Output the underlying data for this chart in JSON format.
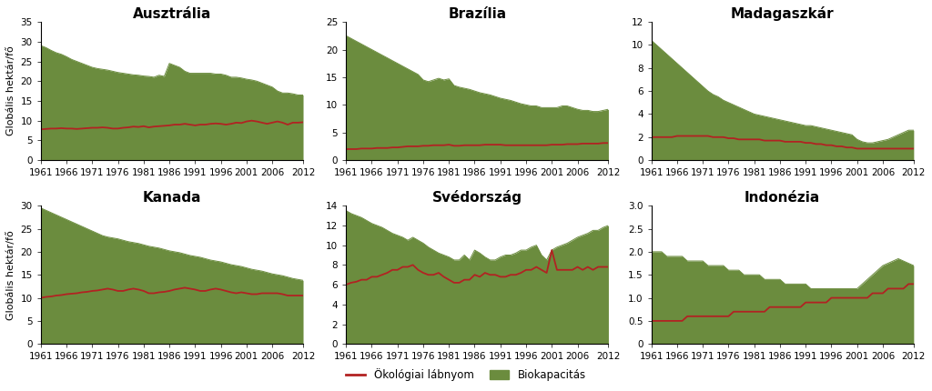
{
  "titles": [
    "Ausztrália",
    "Brazília",
    "Madagaszkár",
    "Kanada",
    "Svédország",
    "Indonézia"
  ],
  "years": [
    1961,
    1962,
    1963,
    1964,
    1965,
    1966,
    1967,
    1968,
    1969,
    1970,
    1971,
    1972,
    1973,
    1974,
    1975,
    1976,
    1977,
    1978,
    1979,
    1980,
    1981,
    1982,
    1983,
    1984,
    1985,
    1986,
    1987,
    1988,
    1989,
    1990,
    1991,
    1992,
    1993,
    1994,
    1995,
    1996,
    1997,
    1998,
    1999,
    2000,
    2001,
    2002,
    2003,
    2004,
    2005,
    2006,
    2007,
    2008,
    2009,
    2010,
    2011,
    2012
  ],
  "biocap": {
    "Ausztrália": [
      29.0,
      28.5,
      27.8,
      27.2,
      26.8,
      26.2,
      25.5,
      25.0,
      24.5,
      24.0,
      23.5,
      23.2,
      23.0,
      22.8,
      22.5,
      22.2,
      22.0,
      21.8,
      21.6,
      21.5,
      21.3,
      21.2,
      21.0,
      21.5,
      21.2,
      24.5,
      24.0,
      23.5,
      22.5,
      22.0,
      22.0,
      22.0,
      22.0,
      22.0,
      21.8,
      21.8,
      21.5,
      21.0,
      21.0,
      20.8,
      20.5,
      20.3,
      20.0,
      19.5,
      19.0,
      18.5,
      17.5,
      17.0,
      17.0,
      16.8,
      16.5,
      16.5
    ],
    "Brazília": [
      22.5,
      22.0,
      21.5,
      21.0,
      20.5,
      20.0,
      19.5,
      19.0,
      18.5,
      18.0,
      17.5,
      17.0,
      16.5,
      16.0,
      15.5,
      14.5,
      14.2,
      14.5,
      14.8,
      14.5,
      14.7,
      13.5,
      13.2,
      13.0,
      12.8,
      12.5,
      12.2,
      12.0,
      11.8,
      11.5,
      11.2,
      11.0,
      10.8,
      10.5,
      10.2,
      10.0,
      9.8,
      9.8,
      9.5,
      9.5,
      9.5,
      9.5,
      9.8,
      9.8,
      9.5,
      9.2,
      9.0,
      9.0,
      8.8,
      8.8,
      9.0,
      9.2
    ],
    "Madagaszkár": [
      10.4,
      10.0,
      9.6,
      9.2,
      8.8,
      8.4,
      8.0,
      7.6,
      7.2,
      6.8,
      6.4,
      6.0,
      5.7,
      5.5,
      5.2,
      5.0,
      4.8,
      4.6,
      4.4,
      4.2,
      4.0,
      3.9,
      3.8,
      3.7,
      3.6,
      3.5,
      3.4,
      3.3,
      3.2,
      3.1,
      3.0,
      3.0,
      2.9,
      2.8,
      2.7,
      2.6,
      2.5,
      2.4,
      2.3,
      2.2,
      1.8,
      1.6,
      1.5,
      1.5,
      1.6,
      1.7,
      1.8,
      2.0,
      2.2,
      2.4,
      2.6,
      2.6
    ],
    "Kanada": [
      29.5,
      29.0,
      28.5,
      28.0,
      27.5,
      27.0,
      26.5,
      26.0,
      25.5,
      25.0,
      24.5,
      24.0,
      23.5,
      23.2,
      23.0,
      22.8,
      22.5,
      22.2,
      22.0,
      21.8,
      21.5,
      21.2,
      21.0,
      20.8,
      20.5,
      20.2,
      20.0,
      19.8,
      19.5,
      19.2,
      19.0,
      18.8,
      18.5,
      18.2,
      18.0,
      17.8,
      17.5,
      17.2,
      17.0,
      16.8,
      16.5,
      16.2,
      16.0,
      15.8,
      15.5,
      15.2,
      15.0,
      14.8,
      14.5,
      14.2,
      14.0,
      13.8
    ],
    "Svédország": [
      13.5,
      13.2,
      13.0,
      12.8,
      12.5,
      12.2,
      12.0,
      11.8,
      11.5,
      11.2,
      11.0,
      10.8,
      10.5,
      10.8,
      10.5,
      10.2,
      9.8,
      9.5,
      9.2,
      9.0,
      8.8,
      8.5,
      8.5,
      9.0,
      8.5,
      9.5,
      9.2,
      8.8,
      8.5,
      8.5,
      8.8,
      9.0,
      9.0,
      9.2,
      9.5,
      9.5,
      9.8,
      10.0,
      9.0,
      8.5,
      9.5,
      9.8,
      10.0,
      10.2,
      10.5,
      10.8,
      11.0,
      11.2,
      11.5,
      11.5,
      11.8,
      12.0
    ],
    "Indonézia": [
      2.0,
      2.0,
      2.0,
      1.9,
      1.9,
      1.9,
      1.9,
      1.8,
      1.8,
      1.8,
      1.8,
      1.7,
      1.7,
      1.7,
      1.7,
      1.6,
      1.6,
      1.6,
      1.5,
      1.5,
      1.5,
      1.5,
      1.4,
      1.4,
      1.4,
      1.4,
      1.3,
      1.3,
      1.3,
      1.3,
      1.3,
      1.2,
      1.2,
      1.2,
      1.2,
      1.2,
      1.2,
      1.2,
      1.2,
      1.2,
      1.2,
      1.3,
      1.4,
      1.5,
      1.6,
      1.7,
      1.75,
      1.8,
      1.85,
      1.8,
      1.75,
      1.7
    ]
  },
  "footprint": {
    "Ausztrália": [
      7.8,
      7.9,
      8.0,
      8.0,
      8.1,
      8.0,
      8.0,
      7.9,
      8.0,
      8.1,
      8.2,
      8.2,
      8.3,
      8.2,
      8.0,
      8.0,
      8.2,
      8.3,
      8.5,
      8.4,
      8.6,
      8.3,
      8.5,
      8.6,
      8.7,
      8.8,
      9.0,
      9.0,
      9.2,
      9.0,
      8.8,
      9.0,
      9.0,
      9.2,
      9.3,
      9.2,
      9.0,
      9.2,
      9.5,
      9.4,
      9.8,
      10.0,
      9.8,
      9.5,
      9.2,
      9.5,
      9.8,
      9.5,
      9.0,
      9.5,
      9.5,
      9.6
    ],
    "Brazília": [
      2.0,
      2.0,
      2.0,
      2.1,
      2.1,
      2.1,
      2.2,
      2.2,
      2.2,
      2.3,
      2.3,
      2.4,
      2.5,
      2.5,
      2.5,
      2.6,
      2.6,
      2.7,
      2.7,
      2.7,
      2.8,
      2.6,
      2.6,
      2.7,
      2.7,
      2.7,
      2.7,
      2.8,
      2.8,
      2.8,
      2.8,
      2.7,
      2.7,
      2.7,
      2.7,
      2.7,
      2.7,
      2.7,
      2.7,
      2.7,
      2.8,
      2.8,
      2.8,
      2.9,
      2.9,
      2.9,
      3.0,
      3.0,
      3.0,
      3.0,
      3.1,
      3.1
    ],
    "Madagaszkár": [
      2.0,
      2.0,
      2.0,
      2.0,
      2.0,
      2.1,
      2.1,
      2.1,
      2.1,
      2.1,
      2.1,
      2.1,
      2.0,
      2.0,
      2.0,
      1.9,
      1.9,
      1.8,
      1.8,
      1.8,
      1.8,
      1.8,
      1.7,
      1.7,
      1.7,
      1.7,
      1.6,
      1.6,
      1.6,
      1.6,
      1.5,
      1.5,
      1.4,
      1.4,
      1.3,
      1.3,
      1.2,
      1.2,
      1.1,
      1.1,
      1.0,
      1.0,
      1.0,
      1.0,
      1.0,
      1.0,
      1.0,
      1.0,
      1.0,
      1.0,
      1.0,
      1.0
    ],
    "Kanada": [
      10.0,
      10.2,
      10.3,
      10.5,
      10.6,
      10.8,
      10.9,
      11.0,
      11.2,
      11.3,
      11.5,
      11.6,
      11.8,
      12.0,
      11.8,
      11.5,
      11.5,
      11.8,
      12.0,
      11.8,
      11.5,
      11.0,
      11.0,
      11.2,
      11.3,
      11.5,
      11.8,
      12.0,
      12.2,
      12.0,
      11.8,
      11.5,
      11.5,
      11.8,
      12.0,
      11.8,
      11.5,
      11.2,
      11.0,
      11.2,
      11.0,
      10.8,
      10.8,
      11.0,
      11.0,
      11.0,
      11.0,
      10.8,
      10.5,
      10.5,
      10.5,
      10.5
    ],
    "Svédország": [
      6.0,
      6.2,
      6.3,
      6.5,
      6.5,
      6.8,
      6.8,
      7.0,
      7.2,
      7.5,
      7.5,
      7.8,
      7.8,
      8.0,
      7.5,
      7.2,
      7.0,
      7.0,
      7.2,
      6.8,
      6.5,
      6.2,
      6.2,
      6.5,
      6.5,
      7.0,
      6.8,
      7.2,
      7.0,
      7.0,
      6.8,
      6.8,
      7.0,
      7.0,
      7.2,
      7.5,
      7.5,
      7.8,
      7.5,
      7.2,
      9.5,
      7.5,
      7.5,
      7.5,
      7.5,
      7.8,
      7.5,
      7.8,
      7.5,
      7.8,
      7.8,
      7.8
    ],
    "Indonézia": [
      0.5,
      0.5,
      0.5,
      0.5,
      0.5,
      0.5,
      0.5,
      0.6,
      0.6,
      0.6,
      0.6,
      0.6,
      0.6,
      0.6,
      0.6,
      0.6,
      0.7,
      0.7,
      0.7,
      0.7,
      0.7,
      0.7,
      0.7,
      0.8,
      0.8,
      0.8,
      0.8,
      0.8,
      0.8,
      0.8,
      0.9,
      0.9,
      0.9,
      0.9,
      0.9,
      1.0,
      1.0,
      1.0,
      1.0,
      1.0,
      1.0,
      1.0,
      1.0,
      1.1,
      1.1,
      1.1,
      1.2,
      1.2,
      1.2,
      1.2,
      1.3,
      1.3
    ]
  },
  "ylims": {
    "Ausztrália": [
      0,
      35
    ],
    "Brazília": [
      0,
      25
    ],
    "Madagaszkár": [
      0,
      12
    ],
    "Kanada": [
      0,
      30
    ],
    "Svédország": [
      0,
      14
    ],
    "Indonézia": [
      0,
      3.0
    ]
  },
  "yticks": {
    "Ausztrália": [
      0,
      5,
      10,
      15,
      20,
      25,
      30,
      35
    ],
    "Brazília": [
      0,
      5,
      10,
      15,
      20,
      25
    ],
    "Madagaszkár": [
      0,
      2,
      4,
      6,
      8,
      10,
      12
    ],
    "Kanada": [
      0,
      5,
      10,
      15,
      20,
      25,
      30
    ],
    "Svédország": [
      0,
      2,
      4,
      6,
      8,
      10,
      12,
      14
    ],
    "Indonézia": [
      0,
      0.5,
      1.0,
      1.5,
      2.0,
      2.5,
      3.0
    ]
  },
  "xticks": [
    1961,
    1966,
    1971,
    1976,
    1981,
    1986,
    1991,
    1996,
    2001,
    2006,
    2012
  ],
  "ylabel_rows": [
    "Globális hektár/fő",
    "Globális hektár/fő"
  ],
  "green_color": "#6b8c3e",
  "red_color": "#b22222",
  "bg_color": "#ffffff",
  "legend_labels": [
    "Ökológiai lábnyom",
    "Biokapacitás"
  ],
  "title_fontsize": 11,
  "tick_fontsize": 7.5,
  "ylabel_fontsize": 8
}
